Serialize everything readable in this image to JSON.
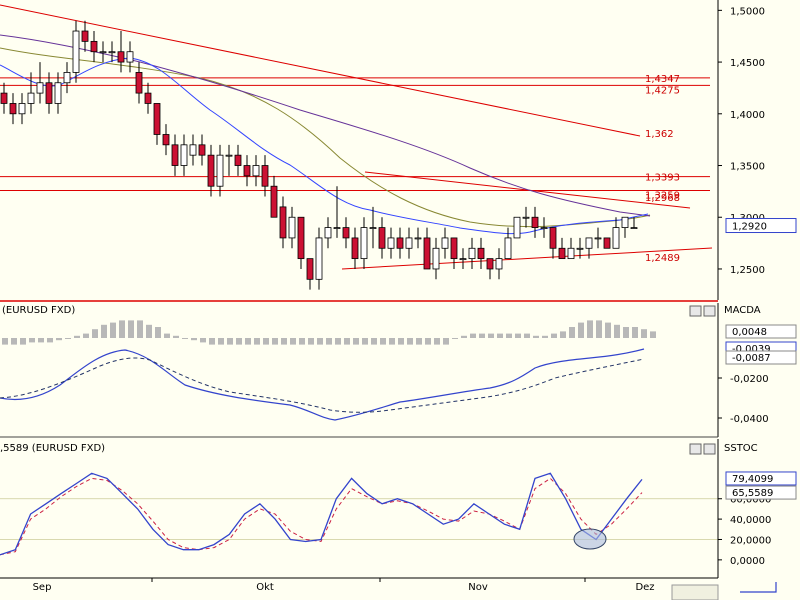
{
  "chart_data": [
    {
      "type": "candlestick",
      "ylim": [
        1.22,
        1.51
      ],
      "y_ticks": [
        "1,5000",
        "1,4500",
        "1,4000",
        "1,3500",
        "1,3000",
        "1,2500"
      ],
      "y_tick_values": [
        1.5,
        1.45,
        1.4,
        1.35,
        1.3,
        1.25
      ],
      "x_tick_labels": [
        "Sep",
        "Okt",
        "Nov",
        "Dez"
      ],
      "current_price_label": "1,2920",
      "current_price": 1.292,
      "levels": [
        {
          "label": "1,4347",
          "value": 1.4347
        },
        {
          "label": "1,4275",
          "value": 1.4275
        },
        {
          "label": "1,3393",
          "value": 1.3393
        },
        {
          "label": "1,3259",
          "value": 1.3259
        }
      ],
      "trend_labels": [
        {
          "label": "1,362",
          "value": 1.362
        },
        {
          "label": "1,2968",
          "value": 1.2968
        },
        {
          "label": "1,2489",
          "value": 1.2489
        }
      ],
      "candles": [
        [
          1.42,
          1.43,
          1.4,
          1.41
        ],
        [
          1.41,
          1.42,
          1.39,
          1.4
        ],
        [
          1.4,
          1.42,
          1.39,
          1.41
        ],
        [
          1.41,
          1.44,
          1.4,
          1.42
        ],
        [
          1.42,
          1.45,
          1.41,
          1.43
        ],
        [
          1.43,
          1.44,
          1.4,
          1.41
        ],
        [
          1.41,
          1.44,
          1.4,
          1.43
        ],
        [
          1.43,
          1.45,
          1.42,
          1.44
        ],
        [
          1.44,
          1.49,
          1.43,
          1.48
        ],
        [
          1.48,
          1.49,
          1.46,
          1.47
        ],
        [
          1.47,
          1.48,
          1.45,
          1.46
        ],
        [
          1.46,
          1.47,
          1.45,
          1.46
        ],
        [
          1.46,
          1.47,
          1.45,
          1.46
        ],
        [
          1.46,
          1.48,
          1.44,
          1.45
        ],
        [
          1.45,
          1.47,
          1.44,
          1.46
        ],
        [
          1.44,
          1.45,
          1.41,
          1.42
        ],
        [
          1.42,
          1.43,
          1.4,
          1.41
        ],
        [
          1.41,
          1.41,
          1.37,
          1.38
        ],
        [
          1.38,
          1.39,
          1.36,
          1.37
        ],
        [
          1.37,
          1.38,
          1.34,
          1.35
        ],
        [
          1.35,
          1.38,
          1.34,
          1.37
        ],
        [
          1.36,
          1.38,
          1.35,
          1.37
        ],
        [
          1.37,
          1.38,
          1.35,
          1.36
        ],
        [
          1.36,
          1.37,
          1.32,
          1.33
        ],
        [
          1.33,
          1.37,
          1.32,
          1.36
        ],
        [
          1.36,
          1.37,
          1.34,
          1.36
        ],
        [
          1.36,
          1.37,
          1.34,
          1.35
        ],
        [
          1.35,
          1.36,
          1.33,
          1.34
        ],
        [
          1.34,
          1.36,
          1.33,
          1.35
        ],
        [
          1.35,
          1.36,
          1.32,
          1.33
        ],
        [
          1.33,
          1.34,
          1.3,
          1.3
        ],
        [
          1.31,
          1.32,
          1.27,
          1.28
        ],
        [
          1.28,
          1.31,
          1.27,
          1.3
        ],
        [
          1.3,
          1.3,
          1.25,
          1.26
        ],
        [
          1.26,
          1.26,
          1.23,
          1.24
        ],
        [
          1.24,
          1.29,
          1.23,
          1.28
        ],
        [
          1.28,
          1.3,
          1.27,
          1.29
        ],
        [
          1.29,
          1.33,
          1.28,
          1.29
        ],
        [
          1.29,
          1.3,
          1.27,
          1.28
        ],
        [
          1.28,
          1.29,
          1.25,
          1.26
        ],
        [
          1.26,
          1.3,
          1.25,
          1.29
        ],
        [
          1.29,
          1.31,
          1.27,
          1.29
        ],
        [
          1.29,
          1.3,
          1.26,
          1.27
        ],
        [
          1.27,
          1.29,
          1.26,
          1.28
        ],
        [
          1.28,
          1.29,
          1.26,
          1.27
        ],
        [
          1.27,
          1.29,
          1.26,
          1.28
        ],
        [
          1.28,
          1.29,
          1.27,
          1.28
        ],
        [
          1.28,
          1.29,
          1.25,
          1.25
        ],
        [
          1.25,
          1.28,
          1.24,
          1.27
        ],
        [
          1.27,
          1.29,
          1.26,
          1.28
        ],
        [
          1.28,
          1.28,
          1.25,
          1.26
        ],
        [
          1.26,
          1.27,
          1.25,
          1.26
        ],
        [
          1.26,
          1.28,
          1.25,
          1.27
        ],
        [
          1.27,
          1.28,
          1.25,
          1.26
        ],
        [
          1.26,
          1.26,
          1.24,
          1.25
        ],
        [
          1.25,
          1.27,
          1.24,
          1.26
        ],
        [
          1.26,
          1.29,
          1.26,
          1.28
        ],
        [
          1.28,
          1.3,
          1.28,
          1.3
        ],
        [
          1.3,
          1.31,
          1.29,
          1.3
        ],
        [
          1.3,
          1.31,
          1.28,
          1.29
        ],
        [
          1.29,
          1.3,
          1.28,
          1.29
        ],
        [
          1.29,
          1.29,
          1.26,
          1.27
        ],
        [
          1.27,
          1.28,
          1.26,
          1.26
        ],
        [
          1.26,
          1.28,
          1.26,
          1.27
        ],
        [
          1.27,
          1.28,
          1.26,
          1.27
        ],
        [
          1.27,
          1.28,
          1.26,
          1.28
        ],
        [
          1.28,
          1.29,
          1.27,
          1.28
        ],
        [
          1.28,
          1.28,
          1.27,
          1.27
        ],
        [
          1.27,
          1.3,
          1.27,
          1.29
        ],
        [
          1.29,
          1.3,
          1.28,
          1.3
        ],
        [
          1.29,
          1.3,
          1.29,
          1.29
        ]
      ]
    },
    {
      "type": "line",
      "legend": "(EURUSD FXD)",
      "indicator_label": "MACDA",
      "ylim": [
        -0.047,
        0.01
      ],
      "y_ticks": [
        "-0,0200",
        "-0,0400"
      ],
      "y_tick_values": [
        -0.02,
        -0.04
      ],
      "value_labels": [
        "0,0048",
        "-0,0039",
        "-0,0087"
      ],
      "value_label_values": [
        0.0048,
        -0.0039,
        -0.0087
      ]
    },
    {
      "type": "line",
      "legend": ",5589 (EURUSD FXD)",
      "indicator_label": "SSTOC",
      "ylim": [
        -8,
        100
      ],
      "y_ticks": [
        "60,0000",
        "40,0000",
        "20,0000",
        "0,0000"
      ],
      "y_tick_values": [
        60,
        40,
        20,
        0
      ],
      "value_labels": [
        "79,4099",
        "65,5589"
      ],
      "value_label_values": [
        79.41,
        65.56
      ],
      "k_values": [
        5,
        10,
        45,
        55,
        65,
        75,
        85,
        80,
        65,
        50,
        30,
        15,
        10,
        10,
        15,
        25,
        45,
        55,
        40,
        20,
        18,
        20,
        60,
        80,
        65,
        55,
        60,
        55,
        45,
        35,
        40,
        55,
        45,
        35,
        30,
        80,
        85,
        60,
        30,
        20,
        40,
        60,
        79
      ],
      "d_values": [
        5,
        8,
        40,
        50,
        62,
        72,
        80,
        78,
        68,
        55,
        38,
        20,
        12,
        10,
        12,
        20,
        40,
        50,
        45,
        28,
        20,
        18,
        50,
        70,
        62,
        55,
        58,
        55,
        48,
        40,
        38,
        48,
        45,
        38,
        30,
        70,
        80,
        65,
        40,
        25,
        35,
        50,
        66
      ]
    }
  ],
  "colors": {
    "bull": "#ffffff",
    "bear": "#cc1133",
    "line_red": "#dd0000",
    "macd": "#3344cc",
    "ma_blue": "#3344ff",
    "ma_olive": "#888833",
    "ma_purple": "#663399"
  }
}
